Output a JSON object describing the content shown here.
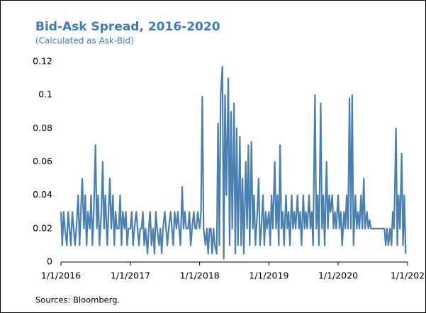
{
  "chart_data": {
    "type": "line",
    "title": "Bid-Ask Spread, 2016-2020",
    "subtitle": "(Calculated as Ask-Bid)",
    "source": "Sources: Bloomberg.",
    "xlim": [
      "2016-01-01",
      "2021-01-01"
    ],
    "xticks": [
      {
        "value": "2016-01-01",
        "label": "1/1/2016"
      },
      {
        "value": "2017-01-01",
        "label": "1/1/2017"
      },
      {
        "value": "2018-01-01",
        "label": "1/1/2018"
      },
      {
        "value": "2019-01-01",
        "label": "1/1/2019"
      },
      {
        "value": "2020-01-01",
        "label": "1/1/2020"
      },
      {
        "value": "2021-01-01",
        "label": "1/1/202"
      }
    ],
    "ylim": [
      0,
      0.12
    ],
    "yticks": [
      0,
      0.02,
      0.04,
      0.06,
      0.08,
      0.1,
      0.12
    ],
    "grid": false,
    "x": [
      "2016-01-01",
      "2016-01-08",
      "2016-01-15",
      "2016-01-22",
      "2016-02-01",
      "2016-02-08",
      "2016-02-15",
      "2016-02-22",
      "2016-03-01",
      "2016-03-08",
      "2016-03-15",
      "2016-03-22",
      "2016-04-01",
      "2016-04-08",
      "2016-04-15",
      "2016-04-22",
      "2016-05-01",
      "2016-05-08",
      "2016-05-15",
      "2016-05-22",
      "2016-06-01",
      "2016-06-08",
      "2016-06-15",
      "2016-06-22",
      "2016-07-01",
      "2016-07-08",
      "2016-07-15",
      "2016-07-22",
      "2016-08-01",
      "2016-08-08",
      "2016-08-15",
      "2016-08-22",
      "2016-09-01",
      "2016-09-08",
      "2016-09-15",
      "2016-09-22",
      "2016-10-01",
      "2016-10-08",
      "2016-10-15",
      "2016-10-22",
      "2016-11-01",
      "2016-11-08",
      "2016-11-15",
      "2016-11-22",
      "2016-12-01",
      "2016-12-08",
      "2016-12-15",
      "2016-12-22",
      "2017-01-01",
      "2017-01-08",
      "2017-01-15",
      "2017-01-22",
      "2017-02-01",
      "2017-02-08",
      "2017-02-15",
      "2017-02-22",
      "2017-03-01",
      "2017-03-08",
      "2017-03-15",
      "2017-03-22",
      "2017-04-01",
      "2017-04-08",
      "2017-04-15",
      "2017-04-22",
      "2017-05-01",
      "2017-05-08",
      "2017-05-15",
      "2017-05-22",
      "2017-06-01",
      "2017-06-08",
      "2017-06-15",
      "2017-06-22",
      "2017-07-01",
      "2017-07-08",
      "2017-07-15",
      "2017-07-22",
      "2017-08-01",
      "2017-08-08",
      "2017-08-15",
      "2017-08-22",
      "2017-09-01",
      "2017-09-08",
      "2017-09-15",
      "2017-09-22",
      "2017-10-01",
      "2017-10-08",
      "2017-10-15",
      "2017-10-22",
      "2017-11-01",
      "2017-11-08",
      "2017-11-15",
      "2017-11-22",
      "2017-12-01",
      "2017-12-08",
      "2017-12-15",
      "2017-12-22",
      "2018-01-01",
      "2018-01-08",
      "2018-01-15",
      "2018-01-22",
      "2018-02-01",
      "2018-02-08",
      "2018-02-15",
      "2018-02-22",
      "2018-03-01",
      "2018-03-08",
      "2018-03-15",
      "2018-03-22",
      "2018-04-01",
      "2018-04-08",
      "2018-04-15",
      "2018-04-22",
      "2018-05-01",
      "2018-05-08",
      "2018-05-15",
      "2018-05-22",
      "2018-06-01",
      "2018-06-08",
      "2018-06-15",
      "2018-06-22",
      "2018-07-01",
      "2018-07-08",
      "2018-07-15",
      "2018-07-22",
      "2018-08-01",
      "2018-08-08",
      "2018-08-15",
      "2018-08-22",
      "2018-09-01",
      "2018-09-08",
      "2018-09-15",
      "2018-09-22",
      "2018-10-01",
      "2018-10-08",
      "2018-10-15",
      "2018-10-22",
      "2018-11-01",
      "2018-11-08",
      "2018-11-15",
      "2018-11-22",
      "2018-12-01",
      "2018-12-08",
      "2018-12-15",
      "2018-12-22",
      "2019-01-01",
      "2019-01-08",
      "2019-01-15",
      "2019-01-22",
      "2019-02-01",
      "2019-02-08",
      "2019-02-15",
      "2019-02-22",
      "2019-03-01",
      "2019-03-08",
      "2019-03-15",
      "2019-03-22",
      "2019-04-01",
      "2019-04-08",
      "2019-04-15",
      "2019-04-22",
      "2019-05-01",
      "2019-05-08",
      "2019-05-15",
      "2019-05-22",
      "2019-06-01",
      "2019-06-08",
      "2019-06-15",
      "2019-06-22",
      "2019-07-01",
      "2019-07-08",
      "2019-07-15",
      "2019-07-22",
      "2019-08-01",
      "2019-08-08",
      "2019-08-15",
      "2019-08-22",
      "2019-09-01",
      "2019-09-08",
      "2019-09-15",
      "2019-09-22",
      "2019-10-01",
      "2019-10-08",
      "2019-10-15",
      "2019-10-22",
      "2019-11-01",
      "2019-11-08",
      "2019-11-15",
      "2019-11-22",
      "2019-12-01",
      "2019-12-08",
      "2019-12-15",
      "2019-12-22",
      "2020-01-01",
      "2020-01-08",
      "2020-01-15",
      "2020-01-22",
      "2020-02-01",
      "2020-02-08",
      "2020-02-15",
      "2020-02-22",
      "2020-03-01",
      "2020-03-08",
      "2020-03-15",
      "2020-03-22",
      "2020-04-01",
      "2020-04-08",
      "2020-04-15",
      "2020-04-22",
      "2020-05-01",
      "2020-05-08",
      "2020-05-15",
      "2020-05-22",
      "2020-06-01",
      "2020-06-08",
      "2020-06-15",
      "2020-06-22",
      "2020-07-01",
      "2020-07-08",
      "2020-07-15",
      "2020-07-22",
      "2020-08-01",
      "2020-08-08",
      "2020-08-15",
      "2020-08-22",
      "2020-09-01",
      "2020-09-08",
      "2020-09-15",
      "2020-09-22",
      "2020-10-01",
      "2020-10-08",
      "2020-10-15",
      "2020-10-22",
      "2020-11-01",
      "2020-11-08",
      "2020-11-15",
      "2020-11-22",
      "2020-12-01",
      "2020-12-08",
      "2020-12-15",
      "2020-12-22"
    ],
    "series": [
      {
        "color": "#4a7fb1",
        "values": [
          0.03,
          0.01,
          0.03,
          0.02,
          0.01,
          0.03,
          0.02,
          0.01,
          0.03,
          0.02,
          0.01,
          0.02,
          0.04,
          0.01,
          0.03,
          0.05,
          0.02,
          0.04,
          0.01,
          0.03,
          0.02,
          0.04,
          0.01,
          0.03,
          0.07,
          0.02,
          0.04,
          0.01,
          0.03,
          0.06,
          0.02,
          0.04,
          0.01,
          0.03,
          0.05,
          0.02,
          0.04,
          0.01,
          0.03,
          0.02,
          0.02,
          0.04,
          0.01,
          0.03,
          0.02,
          0.03,
          0.01,
          0.02,
          0.02,
          0.03,
          0.01,
          0.02,
          0.03,
          0.02,
          0.01,
          0.02,
          0.02,
          0.03,
          0.01,
          0.02,
          0.005,
          0.02,
          0.03,
          0.01,
          0.02,
          0.005,
          0.03,
          0.02,
          0.01,
          0.02,
          0.005,
          0.02,
          0.03,
          0.02,
          0.01,
          0.02,
          0.03,
          0.02,
          0.01,
          0.03,
          0.02,
          0.03,
          0.02,
          0.01,
          0.045,
          0.02,
          0.03,
          0.02,
          0.02,
          0.03,
          0.01,
          0.02,
          0.03,
          0.02,
          0.02,
          0.03,
          0.02,
          0.03,
          0.099,
          0.02,
          0.01,
          0.02,
          0.005,
          0.02,
          0.02,
          0.005,
          0.02,
          0.01,
          0.005,
          0.083,
          0.01,
          0.1,
          0.117,
          0.002,
          0.1,
          0.04,
          0.11,
          0.01,
          0.09,
          0.02,
          0.095,
          0.005,
          0.08,
          0.01,
          0.075,
          0.01,
          0.05,
          0.005,
          0.06,
          0.02,
          0.07,
          0.01,
          0.072,
          0.02,
          0.04,
          0.01,
          0.03,
          0.05,
          0.01,
          0.02,
          0.04,
          0.01,
          0.03,
          0.02,
          0.03,
          0.01,
          0.04,
          0.02,
          0.06,
          0.02,
          0.04,
          0.01,
          0.07,
          0.02,
          0.03,
          0.01,
          0.04,
          0.02,
          0.03,
          0.01,
          0.04,
          0.02,
          0.03,
          0.02,
          0.04,
          0.02,
          0.03,
          0.01,
          0.04,
          0.02,
          0.03,
          0.02,
          0.04,
          0.02,
          0.03,
          0.01,
          0.1,
          0.02,
          0.04,
          0.01,
          0.095,
          0.02,
          0.04,
          0.01,
          0.06,
          0.02,
          0.04,
          0.03,
          0.04,
          0.02,
          0.03,
          0.02,
          0.04,
          0.02,
          0.03,
          0.01,
          0.03,
          0.02,
          0.04,
          0.02,
          0.098,
          0.02,
          0.1,
          0.01,
          0.04,
          0.02,
          0.03,
          0.02,
          0.04,
          0.02,
          0.05,
          0.02,
          0.03,
          0.02,
          0.025,
          0.02,
          0.02,
          0.02,
          0.02,
          0.02,
          0.02,
          0.02,
          0.02,
          0.02,
          0.02,
          0.01,
          0.02,
          0.01,
          0.02,
          0.01,
          0.03,
          0.02,
          0.08,
          0.01,
          0.04,
          0.02,
          0.065,
          0.01,
          0.04,
          0.005
        ]
      }
    ]
  }
}
